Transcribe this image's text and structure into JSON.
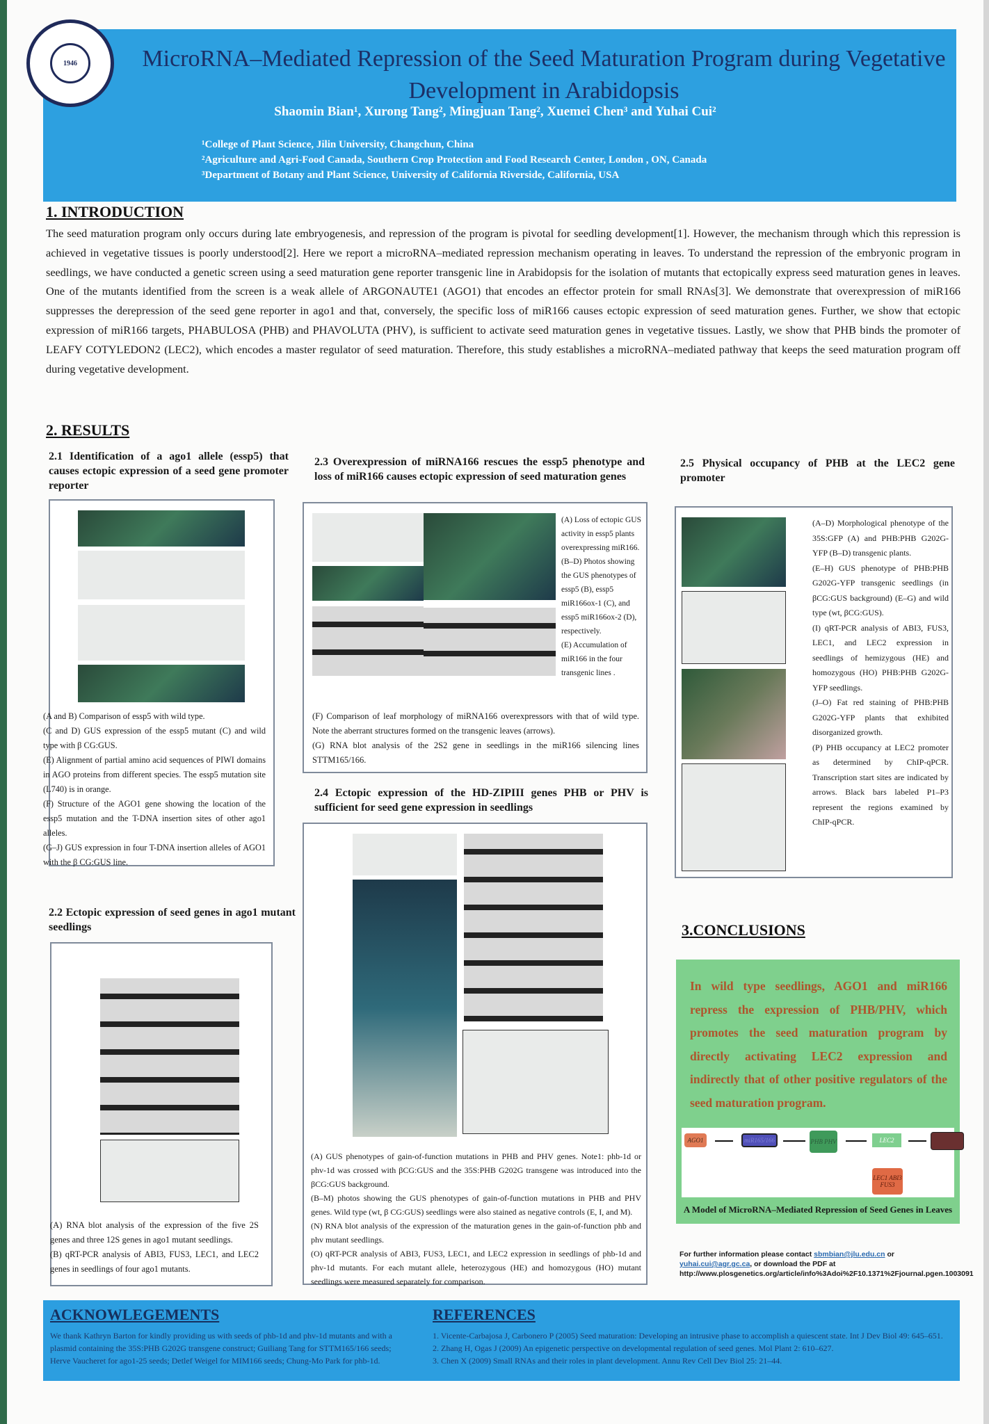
{
  "header": {
    "logo_text": "JILIN UNIVERSITY · CHINA",
    "logo_year": "1946",
    "title": "MicroRNA–Mediated Repression of the Seed Maturation Program during Vegetative Development in Arabidopsis",
    "authors": "Shaomin Bian¹, Xurong Tang², Mingjuan Tang², Xuemei Chen³ and Yuhai Cui²",
    "affiliations": [
      "¹College of Plant Science, Jilin University, Changchun, China",
      "²Agriculture and Agri-Food Canada, Southern Crop Protection and Food Research Center, London , ON, Canada",
      "³Department of Botany and Plant Science, University of California Riverside, California, USA"
    ]
  },
  "introduction": {
    "heading": "1. INTRODUCTION",
    "text": "The seed maturation program only occurs during late embryogenesis, and repression of the program is pivotal for seedling development[1]. However, the mechanism through which this repression is achieved in vegetative tissues is poorly understood[2]. Here we report a microRNA–mediated repression mechanism operating in leaves. To understand the repression of the embryonic program in seedlings, we have conducted a genetic screen using a seed maturation gene reporter transgenic line in Arabidopsis for the isolation of mutants that ectopically express seed maturation genes in leaves. One of the mutants identified from the screen is a weak allele of ARGONAUTE1 (AGO1) that encodes an effector protein for small RNAs[3]. We demonstrate that overexpression of miR166 suppresses the derepression of the seed gene reporter in ago1 and that, conversely, the specific loss of miR166 causes ectopic expression of seed maturation genes. Further, we show that ectopic expression of miR166 targets, PHABULOSA (PHB) and PHAVOLUTA (PHV), is sufficient to activate seed maturation genes in vegetative tissues. Lastly, we show that PHB binds the promoter of LEAFY COTYLEDON2 (LEC2), which encodes a master regulator of seed maturation. Therefore, this study establishes a microRNA–mediated pathway that keeps the seed maturation program off during vegetative development."
  },
  "results": {
    "heading": "2. RESULTS",
    "s21": {
      "heading": "2.1 Identification of a ago1 allele (essp5) that causes ectopic expression of a seed gene promoter reporter",
      "caption": [
        "(A and B) Comparison of essp5 with wild type.",
        "(C and D) GUS expression of the essp5 mutant (C) and wild type with β CG:GUS.",
        "(E) Alignment of partial amino acid sequences of PIWI domains in AGO proteins from different species. The essp5 mutation site (L740) is in orange.",
        "(F) Structure of the AGO1 gene showing the location of the essp5 mutation and the T-DNA insertion sites of other ago1 alleles.",
        "(G–J) GUS expression in four T-DNA insertion alleles of AGO1 with the β CG:GUS line."
      ]
    },
    "s22": {
      "heading": "2.2 Ectopic expression of seed genes in ago1 mutant seedlings",
      "caption": [
        "(A) RNA blot analysis of the expression of the five 2S genes and three 12S genes in ago1 mutant seedlings.",
        "(B) qRT-PCR analysis of ABI3, FUS3, LEC1, and LEC2 genes in seedlings of four ago1 mutants."
      ]
    },
    "s23": {
      "heading": "2.3 Overexpression of miRNA166 rescues the essp5 phenotype and loss of miR166 causes ectopic expression of seed maturation genes",
      "caption_side": [
        "(A) Loss of ectopic GUS activity in essp5 plants overexpressing miR166.",
        "(B–D) Photos showing the GUS phenotypes of essp5 (B), essp5 miR166ox-1 (C), and essp5 miR166ox-2 (D), respectively.",
        "(E) Accumulation of miR166 in the four transgenic lines ."
      ],
      "caption_bottom": [
        "(F) Comparison of leaf morphology of miRNA166 overexpressors with that of wild type. Note the aberrant structures formed on the transgenic leaves (arrows).",
        "(G) RNA blot analysis of the 2S2 gene in seedlings in the miR166 silencing lines STTM165/166."
      ]
    },
    "s24": {
      "heading": "2.4 Ectopic expression of the HD-ZIPIII genes PHB or PHV is sufficient for seed gene expression in seedlings",
      "caption": [
        "(A) GUS phenotypes of gain-of-function mutations in PHB and PHV genes. Note1: phb-1d or phv-1d was crossed with βCG:GUS and the 35S:PHB G202G transgene was introduced into the βCG:GUS background.",
        "(B–M) photos showing the GUS phenotypes of gain-of-function mutations in PHB and PHV genes. Wild type (wt, β CG:GUS) seedlings were also stained as negative controls (E, I, and M).",
        "(N) RNA blot analysis of the expression of the maturation genes in the gain-of-function phb and phv mutant seedlings.",
        "(O) qRT-PCR analysis of ABI3, FUS3, LEC1, and LEC2 expression in seedlings of phb-1d and phv-1d mutants. For each mutant allele, heterozygous (HE) and homozygous (HO) mutant seedlings were measured separately for comparison."
      ]
    },
    "s25": {
      "heading": "2.5 Physical occupancy of PHB at the LEC2 gene promoter",
      "caption": [
        "(A–D) Morphological phenotype of the 35S:GFP (A) and PHB:PHB G202G-YFP (B–D) transgenic plants.",
        "(E–H) GUS phenotype of PHB:PHB G202G-YFP transgenic seedlings (in βCG:GUS background) (E–G) and wild type (wt, βCG:GUS).",
        "(I) qRT-PCR analysis of ABI3, FUS3, LEC1, and LEC2 expression in seedlings of hemizygous (HE) and homozygous (HO) PHB:PHB G202G-YFP seedlings.",
        "(J–O) Fat red staining of PHB:PHB G202G-YFP plants that exhibited disorganized growth.",
        "(P) PHB occupancy at LEC2 promoter as determined by ChIP-qPCR. Transcription start sites are indicated by arrows. Black bars labeled P1–P3 represent the regions examined by ChIP-qPCR."
      ]
    }
  },
  "conclusions": {
    "heading": "3.CONCLUSIONS",
    "text": "In wild type seedlings, AGO1 and miR166 repress the expression of PHB/PHV, which promotes the seed maturation program by directly activating LEC2 expression and indirectly that of other positive regulators of the seed maturation program.",
    "model_nodes": [
      "AGO1",
      "miR165/166",
      "PHB PHV",
      "LEC2",
      "LEC1 ABI3 FUS3"
    ],
    "model_caption": "A Model of MicroRNA–Mediated Repression of Seed Genes in Leaves",
    "colors": {
      "box": "#7fd08d",
      "text": "#b0542c"
    }
  },
  "contact": {
    "prefix": "For further information please contact",
    "email1": "sbmbian@jlu.edu.cn",
    "or": "or",
    "email2": "yuhai.cui@agr.gc.ca",
    "suffix": ", or download the PDF at",
    "url": "http://www.plosgenetics.org/article/info%3Adoi%2F10.1371%2Fjournal.pgen.1003091"
  },
  "footer": {
    "ack_heading": "ACKNOWLEGEMENTS",
    "ack_text": "We thank Kathryn Barton for kindly providing us with seeds of phb-1d and phv-1d mutants and with a plasmid containing the 35S:PHB G202G transgene construct; Guiliang Tang for STTM165/166 seeds; Herve Vaucheret for ago1-25 seeds; Detlef Weigel for MIM166 seeds; Chung-Mo Park for phb-1d.",
    "ref_heading": "REFERENCES",
    "refs": [
      "1. Vicente-Carbajosa J, Carbonero P (2005) Seed maturation: Developing an intrusive phase to accomplish a quiescent state. Int J Dev Biol 49: 645–651.",
      "2. Zhang H, Ogas J (2009) An epigenetic perspective on developmental regulation of seed genes. Mol Plant 2: 610–627.",
      "3. Chen X (2009) Small RNAs and their roles in plant development. Annu Rev Cell Dev Biol 25: 21–44."
    ]
  },
  "colors": {
    "header_blue": "#2da0e0",
    "frame_green": "#2f6b4a"
  }
}
